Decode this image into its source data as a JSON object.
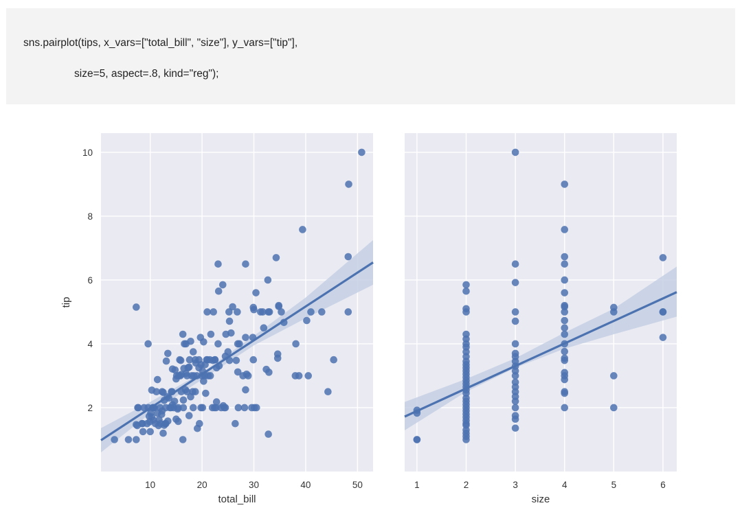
{
  "code": {
    "line1": "sns.pairplot(tips, x_vars=[\"total_bill\", \"size\"], y_vars=[\"tip\"],",
    "line2": "size=5, aspect=.8, kind=\"reg\");"
  },
  "colors": {
    "axes_bg": "#eaeaf2",
    "grid": "#ffffff",
    "points": "#4c72b0",
    "ci_band": "#c5d0e4",
    "tick_text": "#333333"
  },
  "chart_data": [
    {
      "type": "scatter",
      "xlabel": "total_bill",
      "ylabel": "tip",
      "xlim": [
        0.5,
        53
      ],
      "ylim": [
        0,
        10.6
      ],
      "xticks": [
        10,
        20,
        30,
        40,
        50
      ],
      "yticks": [
        2,
        4,
        6,
        8,
        10
      ],
      "grid": true,
      "regression": {
        "x0": 0.5,
        "y0": 0.98,
        "x1": 53,
        "y1": 6.55
      },
      "ci": [
        [
          0.5,
          0.6,
          1.36
        ],
        [
          10,
          1.82,
          2.18
        ],
        [
          20,
          2.88,
          3.1
        ],
        [
          30,
          3.95,
          4.25
        ],
        [
          40,
          4.8,
          5.45
        ],
        [
          53,
          5.85,
          7.25
        ]
      ],
      "points": [
        [
          50.8,
          10
        ],
        [
          48.3,
          9
        ],
        [
          48.2,
          6.73
        ],
        [
          48.2,
          5
        ],
        [
          45.4,
          3.5
        ],
        [
          44.3,
          2.5
        ],
        [
          43.1,
          5
        ],
        [
          41,
          5
        ],
        [
          40.5,
          3
        ],
        [
          40.2,
          4.73
        ],
        [
          39.4,
          7.58
        ],
        [
          38.7,
          3
        ],
        [
          38,
          3
        ],
        [
          38.1,
          4
        ],
        [
          35.8,
          4.67
        ],
        [
          35.3,
          5
        ],
        [
          34.8,
          5.2
        ],
        [
          34.6,
          3.68
        ],
        [
          34.6,
          3.55
        ],
        [
          34.3,
          6.7
        ],
        [
          34.8,
          5.17
        ],
        [
          33,
          5
        ],
        [
          32.8,
          1.17
        ],
        [
          32.9,
          3.11
        ],
        [
          32.7,
          6
        ],
        [
          32.4,
          3.2
        ],
        [
          32.8,
          5
        ],
        [
          31.9,
          4.5
        ],
        [
          31.7,
          5
        ],
        [
          31.3,
          5
        ],
        [
          30.4,
          5.6
        ],
        [
          30.5,
          2
        ],
        [
          30.1,
          2
        ],
        [
          30,
          5.07
        ],
        [
          29.9,
          3.5
        ],
        [
          29.8,
          4.2
        ],
        [
          29.9,
          5.14
        ],
        [
          29.6,
          2
        ],
        [
          28.9,
          3
        ],
        [
          28.4,
          4.2
        ],
        [
          28.2,
          2
        ],
        [
          28.4,
          2.56
        ],
        [
          28.4,
          6.5
        ],
        [
          28.6,
          3.05
        ],
        [
          27.2,
          4
        ],
        [
          27.0,
          2
        ],
        [
          26.9,
          3.12
        ],
        [
          26.9,
          4
        ],
        [
          26.8,
          5
        ],
        [
          26.6,
          3.48
        ],
        [
          26.4,
          1.5
        ],
        [
          25.9,
          5.16
        ],
        [
          25.6,
          4.34
        ],
        [
          25.3,
          4.71
        ],
        [
          25.3,
          3.48
        ],
        [
          25.2,
          5
        ],
        [
          25.0,
          3.75
        ],
        [
          24.5,
          3.61
        ],
        [
          24.3,
          2
        ],
        [
          24.1,
          2.06
        ],
        [
          24.6,
          4.3
        ],
        [
          24.0,
          5.85
        ],
        [
          23.7,
          2
        ],
        [
          23.3,
          3.31
        ],
        [
          23.2,
          5.65
        ],
        [
          23.1,
          4
        ],
        [
          23.1,
          6.5
        ],
        [
          22.8,
          3.25
        ],
        [
          22.7,
          2
        ],
        [
          22.8,
          2.18
        ],
        [
          22.5,
          3.5
        ],
        [
          22.4,
          2
        ],
        [
          22.2,
          5
        ],
        [
          22.1,
          3.48
        ],
        [
          22.0,
          2
        ],
        [
          21.7,
          4.3
        ],
        [
          21.6,
          3
        ],
        [
          21.5,
          3.5
        ],
        [
          21.0,
          3.5
        ],
        [
          21.2,
          3
        ],
        [
          21.0,
          5
        ],
        [
          20.9,
          3.5
        ],
        [
          20.7,
          2.45
        ],
        [
          20.6,
          3.35
        ],
        [
          20.5,
          3
        ],
        [
          20.3,
          2.83
        ],
        [
          20.3,
          4.06
        ],
        [
          20.1,
          3.15
        ],
        [
          20.1,
          2
        ],
        [
          20.0,
          3
        ],
        [
          19.8,
          3.35
        ],
        [
          19.8,
          2
        ],
        [
          19.7,
          4.2
        ],
        [
          19.5,
          1.5
        ],
        [
          19.4,
          3.25
        ],
        [
          19.1,
          1.35
        ],
        [
          19.0,
          3
        ],
        [
          19.4,
          3.5
        ],
        [
          18.8,
          3.4
        ],
        [
          18.7,
          2.5
        ],
        [
          18.7,
          3.5
        ],
        [
          18.4,
          3
        ],
        [
          18.3,
          3.75
        ],
        [
          18.2,
          2.5
        ],
        [
          18.0,
          3
        ],
        [
          17.8,
          4.08
        ],
        [
          17.8,
          2.34
        ],
        [
          17.6,
          3.5
        ],
        [
          17.5,
          1.75
        ],
        [
          17.5,
          3.27
        ],
        [
          17.3,
          3.25
        ],
        [
          17.1,
          2.5
        ],
        [
          17.1,
          3
        ],
        [
          16.9,
          3.07
        ],
        [
          16.9,
          4
        ],
        [
          16.8,
          2.56
        ],
        [
          16.5,
          3.23
        ],
        [
          16.4,
          2
        ],
        [
          16.3,
          4.3
        ],
        [
          16.4,
          2.24
        ],
        [
          16.3,
          1
        ],
        [
          16.0,
          2.5
        ],
        [
          16.0,
          3.04
        ],
        [
          15.9,
          3.48
        ],
        [
          15.7,
          3.5
        ],
        [
          15.5,
          3
        ],
        [
          15.4,
          1.57
        ],
        [
          15.4,
          2
        ],
        [
          15.3,
          1.96
        ],
        [
          15.1,
          3
        ],
        [
          15.0,
          1.64
        ],
        [
          15.0,
          2.9
        ],
        [
          14.8,
          3.18
        ],
        [
          14.7,
          2.2
        ],
        [
          14.5,
          2
        ],
        [
          14.3,
          3.21
        ],
        [
          14.3,
          2.09
        ],
        [
          14.1,
          2.5
        ],
        [
          14.0,
          2
        ],
        [
          13.8,
          2
        ],
        [
          13.6,
          2.3
        ],
        [
          13.4,
          3.7
        ],
        [
          13.4,
          1.58
        ],
        [
          13.3,
          2.34
        ],
        [
          13.0,
          2
        ],
        [
          13.0,
          1.5
        ],
        [
          12.9,
          1.5
        ],
        [
          12.7,
          2.23
        ],
        [
          12.7,
          1.45
        ],
        [
          12.5,
          2.48
        ],
        [
          12.3,
          1.9
        ],
        [
          12.3,
          2.5
        ],
        [
          12.2,
          1.79
        ],
        [
          12.0,
          1.5
        ],
        [
          11.9,
          2.0
        ],
        [
          11.7,
          1.62
        ],
        [
          11.6,
          1.44
        ],
        [
          11.4,
          2.88
        ],
        [
          11.4,
          1.83
        ],
        [
          11.2,
          2.5
        ],
        [
          11.0,
          1.5
        ],
        [
          10.8,
          2.0
        ],
        [
          10.6,
          1.61
        ],
        [
          10.6,
          2
        ],
        [
          10.5,
          2
        ],
        [
          10.3,
          1.71
        ],
        [
          10.3,
          2.55
        ],
        [
          10.1,
          1.83
        ],
        [
          10.0,
          1.25
        ],
        [
          9.9,
          1.56
        ],
        [
          9.8,
          1.73
        ],
        [
          9.6,
          4
        ],
        [
          9.6,
          2
        ],
        [
          9.4,
          1.5
        ],
        [
          8.8,
          2
        ],
        [
          8.6,
          1.25
        ],
        [
          8.5,
          1.5
        ],
        [
          8.4,
          1.5
        ],
        [
          7.7,
          2
        ],
        [
          7.5,
          1.44
        ],
        [
          7.3,
          5.15
        ],
        [
          7.3,
          1
        ],
        [
          7.6,
          2
        ],
        [
          7.3,
          1.47
        ],
        [
          5.8,
          1
        ],
        [
          3.1,
          1
        ],
        [
          12.5,
          1.2
        ],
        [
          13.1,
          3.46
        ],
        [
          14.2,
          2.5
        ],
        [
          15.8,
          3.0
        ],
        [
          16.6,
          4.0
        ],
        [
          18.3,
          2.0
        ],
        [
          22.5,
          3.5
        ],
        [
          24.5,
          2.0
        ],
        [
          27.9,
          3.0
        ]
      ]
    },
    {
      "type": "scatter",
      "xlabel": "size",
      "ylabel": "",
      "xlim": [
        0.75,
        6.28
      ],
      "ylim": [
        0,
        10.6
      ],
      "xticks": [
        1,
        2,
        3,
        4,
        5,
        6
      ],
      "yticks": [
        2,
        4,
        6,
        8,
        10
      ],
      "grid": true,
      "regression": {
        "x0": 0.75,
        "y0": 1.72,
        "x1": 6.28,
        "y1": 5.62
      },
      "ci": [
        [
          0.75,
          1.29,
          2.18
        ],
        [
          2,
          2.5,
          2.9
        ],
        [
          3,
          3.25,
          3.55
        ],
        [
          4,
          3.85,
          4.35
        ],
        [
          5,
          4.3,
          5.1
        ],
        [
          6.28,
          4.85,
          6.42
        ]
      ],
      "points": [
        [
          1,
          1.92
        ],
        [
          1,
          1.83
        ],
        [
          1,
          1
        ],
        [
          1,
          1
        ],
        [
          2,
          1
        ],
        [
          2,
          1.1
        ],
        [
          2,
          1.2
        ],
        [
          2,
          1.3
        ],
        [
          2,
          1.45
        ],
        [
          2,
          1.5
        ],
        [
          2,
          1.6
        ],
        [
          2,
          1.7
        ],
        [
          2,
          1.8
        ],
        [
          2,
          1.9
        ],
        [
          2,
          2
        ],
        [
          2,
          2.1
        ],
        [
          2,
          2.2
        ],
        [
          2,
          2.3
        ],
        [
          2,
          2.45
        ],
        [
          2,
          2.55
        ],
        [
          2,
          2.65
        ],
        [
          2,
          2.75
        ],
        [
          2,
          2.85
        ],
        [
          2,
          2.95
        ],
        [
          2,
          3.05
        ],
        [
          2,
          3.15
        ],
        [
          2,
          3.25
        ],
        [
          2,
          3.35
        ],
        [
          2,
          3.45
        ],
        [
          2,
          3.6
        ],
        [
          2,
          3.75
        ],
        [
          2,
          3.9
        ],
        [
          2,
          4
        ],
        [
          2,
          4.15
        ],
        [
          2,
          4.3
        ],
        [
          2,
          5
        ],
        [
          2,
          5.1
        ],
        [
          2,
          5.65
        ],
        [
          2,
          5.85
        ],
        [
          3,
          1.36
        ],
        [
          3,
          1.64
        ],
        [
          3,
          1.75
        ],
        [
          3,
          2
        ],
        [
          3,
          2.2
        ],
        [
          3,
          2.35
        ],
        [
          3,
          2.5
        ],
        [
          3,
          2.65
        ],
        [
          3,
          2.8
        ],
        [
          3,
          3
        ],
        [
          3,
          3.15
        ],
        [
          3,
          3.3
        ],
        [
          3,
          3.45
        ],
        [
          3,
          3.6
        ],
        [
          3,
          3.7
        ],
        [
          3,
          4
        ],
        [
          3,
          4.71
        ],
        [
          3,
          5
        ],
        [
          3,
          5.92
        ],
        [
          3,
          6.5
        ],
        [
          3,
          10
        ],
        [
          4,
          2
        ],
        [
          4,
          2.45
        ],
        [
          4,
          2.5
        ],
        [
          4,
          2.88
        ],
        [
          4,
          3
        ],
        [
          4,
          3.1
        ],
        [
          4,
          3.48
        ],
        [
          4,
          3.55
        ],
        [
          4,
          3.76
        ],
        [
          4,
          4
        ],
        [
          4,
          4.3
        ],
        [
          4,
          4.5
        ],
        [
          4,
          4.73
        ],
        [
          4,
          5
        ],
        [
          4,
          5.16
        ],
        [
          4,
          5.2
        ],
        [
          4,
          5.6
        ],
        [
          4,
          6
        ],
        [
          4,
          6.5
        ],
        [
          4,
          6.73
        ],
        [
          4,
          7.58
        ],
        [
          4,
          9
        ],
        [
          5,
          5
        ],
        [
          5,
          5.14
        ],
        [
          5,
          3
        ],
        [
          5,
          2
        ],
        [
          6,
          6.7
        ],
        [
          6,
          5
        ],
        [
          6,
          5
        ],
        [
          6,
          4.2
        ]
      ]
    }
  ]
}
